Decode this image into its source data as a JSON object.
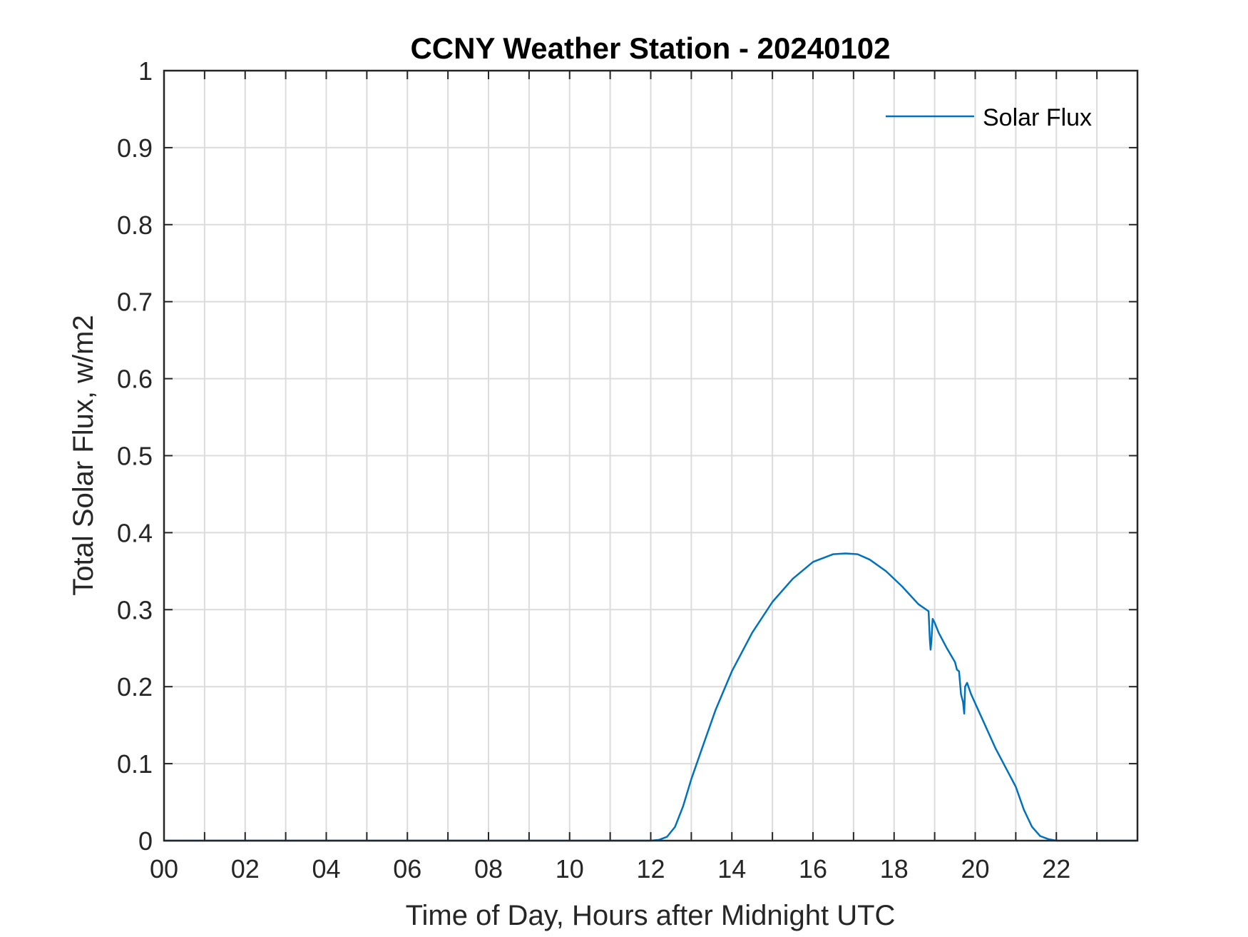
{
  "chart_data": {
    "type": "line",
    "title": "CCNY Weather Station - 20240102",
    "xlabel": "Time of Day, Hours after Midnight UTC",
    "ylabel": "Total Solar Flux, w/m2",
    "xlim": [
      0,
      24
    ],
    "ylim": [
      0,
      1
    ],
    "xticks": [
      0,
      2,
      4,
      6,
      8,
      10,
      12,
      14,
      16,
      18,
      20,
      22
    ],
    "xtick_labels": [
      "00",
      "02",
      "04",
      "06",
      "08",
      "10",
      "12",
      "14",
      "16",
      "18",
      "20",
      "22"
    ],
    "yticks": [
      0,
      0.1,
      0.2,
      0.3,
      0.4,
      0.5,
      0.6,
      0.7,
      0.8,
      0.9,
      1
    ],
    "ytick_labels": [
      "0",
      "0.1",
      "0.2",
      "0.3",
      "0.4",
      "0.5",
      "0.6",
      "0.7",
      "0.8",
      "0.9",
      "1"
    ],
    "grid": true,
    "legend_position": "top-right",
    "colors": {
      "series": "#0072BD",
      "grid": "#dcdcdc",
      "axis": "#262626"
    },
    "series": [
      {
        "name": "Solar Flux",
        "x": [
          0,
          12.0,
          12.2,
          12.4,
          12.6,
          12.8,
          13.0,
          13.3,
          13.6,
          14.0,
          14.5,
          15.0,
          15.5,
          16.0,
          16.5,
          16.8,
          17.1,
          17.4,
          17.8,
          18.2,
          18.6,
          18.85,
          18.88,
          18.9,
          18.92,
          18.95,
          19.0,
          19.1,
          19.3,
          19.5,
          19.55,
          19.6,
          19.65,
          19.7,
          19.73,
          19.75,
          19.8,
          19.9,
          20.2,
          20.5,
          20.8,
          21.0,
          21.2,
          21.4,
          21.6,
          21.8,
          22.0,
          23.99
        ],
        "y": [
          0,
          0,
          0.001,
          0.005,
          0.018,
          0.045,
          0.08,
          0.125,
          0.17,
          0.22,
          0.27,
          0.31,
          0.34,
          0.362,
          0.372,
          0.373,
          0.372,
          0.365,
          0.35,
          0.33,
          0.307,
          0.298,
          0.262,
          0.248,
          0.26,
          0.288,
          0.283,
          0.27,
          0.25,
          0.232,
          0.222,
          0.22,
          0.19,
          0.18,
          0.165,
          0.2,
          0.205,
          0.19,
          0.155,
          0.12,
          0.09,
          0.07,
          0.04,
          0.018,
          0.006,
          0.002,
          0,
          0
        ]
      }
    ]
  }
}
